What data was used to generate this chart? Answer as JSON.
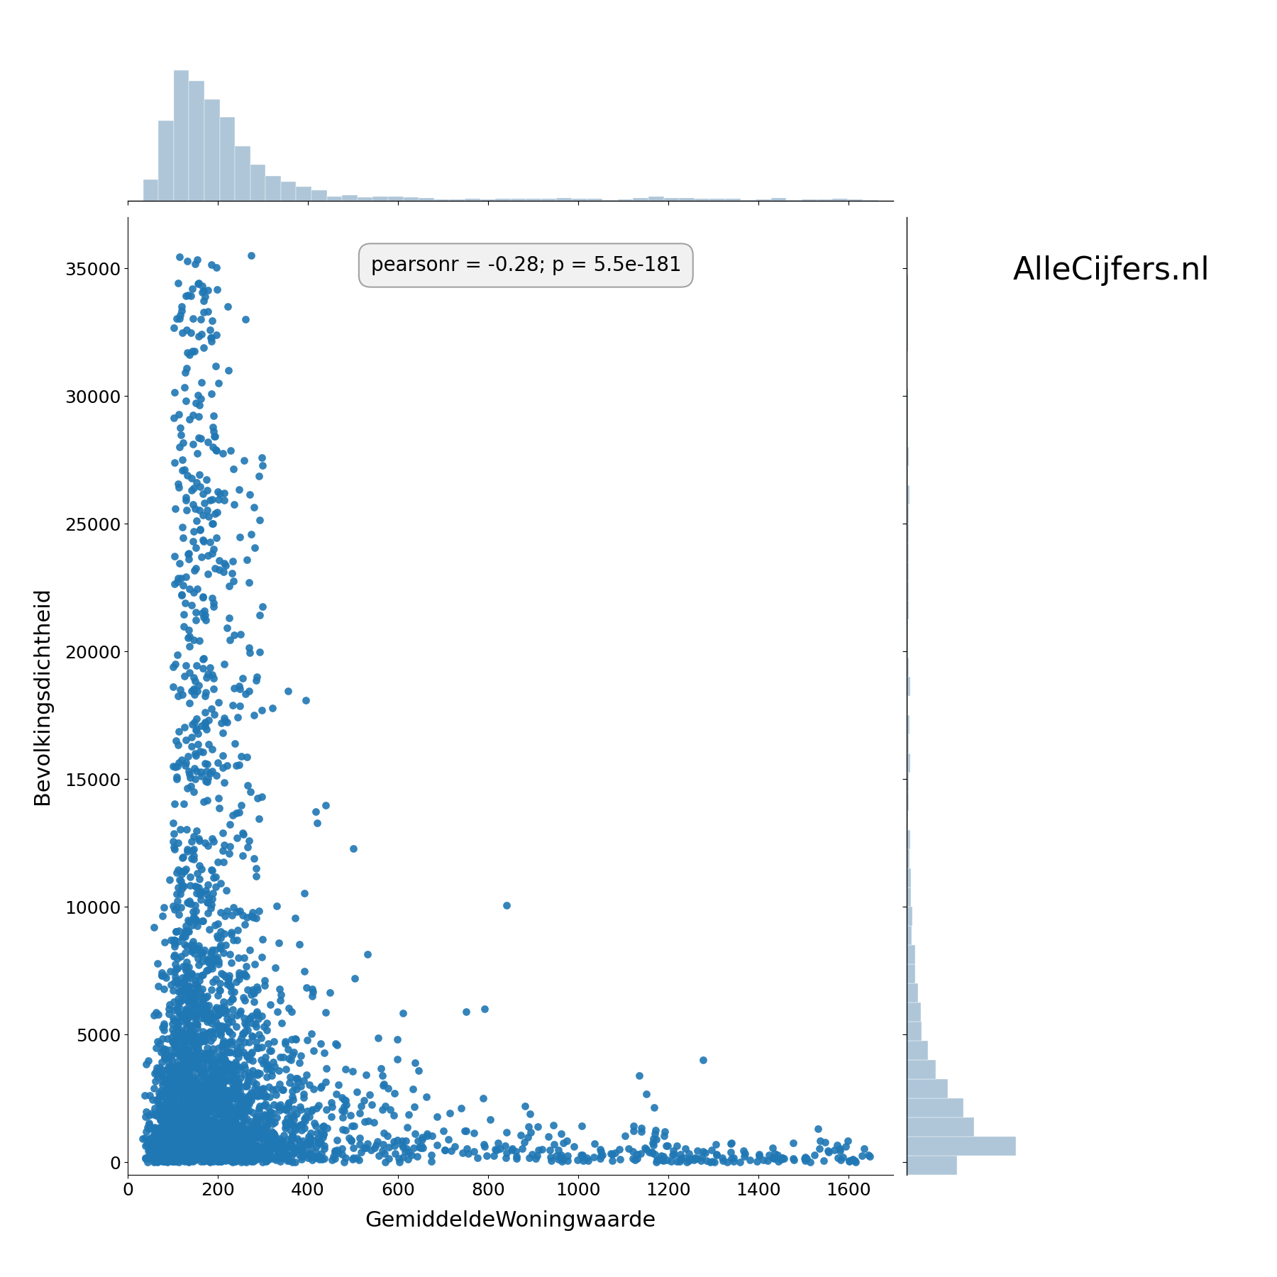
{
  "scatter_color": "#1f77b4",
  "hist_color": "#aec6d8",
  "hist_edge_color": "white",
  "xlabel": "GemiddeldeWoningwaarde",
  "ylabel": "Bevolkingsdichtheid",
  "annotation_text": "pearsonr = -0.28; p = 5.5e-181",
  "watermark": "AlleCijfers.nl",
  "xlim": [
    0,
    1700
  ],
  "ylim": [
    -500,
    37000
  ],
  "x_ticks": [
    0,
    200,
    400,
    600,
    800,
    1000,
    1200,
    1400,
    1600
  ],
  "y_ticks": [
    0,
    5000,
    10000,
    15000,
    20000,
    25000,
    30000,
    35000
  ],
  "scatter_alpha": 0.9,
  "scatter_size": 60,
  "seed": 42,
  "n_points": 3500
}
